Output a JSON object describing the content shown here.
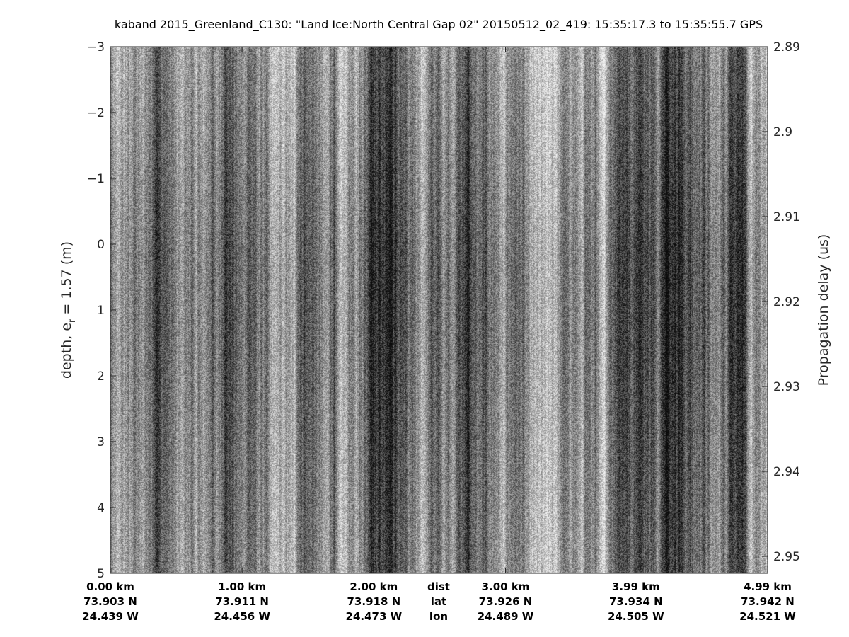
{
  "chart_data": {
    "type": "heatmap",
    "colormap": "gray",
    "title": "kaband 2015_Greenland_C130: \"Land Ice:North Central Gap 02\"  20150512_02_419: 15:35:17.3 to 15:35:55.7 GPS",
    "ylabel_left": "depth, e",
    "ylabel_left_subscript": "r",
    "ylabel_left_suffix": " = 1.57 (m)",
    "ylabel_right": "Propagation delay (us)",
    "ylim_left": [
      -3,
      5
    ],
    "yticks_left": [
      "-3",
      "-2",
      "-1",
      "0",
      "1",
      "2",
      "3",
      "4",
      "5"
    ],
    "ylim_right": [
      2.89,
      2.952
    ],
    "yticks_right": [
      "2.89",
      "2.9",
      "2.91",
      "2.92",
      "2.93",
      "2.94",
      "2.95"
    ],
    "y_reversed": true,
    "x_axis": {
      "row_labels": [
        "dist",
        "lat",
        "lon"
      ],
      "ticks": [
        {
          "dist": "0.00 km",
          "lat": "73.903 N",
          "lon": "24.439 W"
        },
        {
          "dist": "1.00 km",
          "lat": "73.911 N",
          "lon": "24.456 W"
        },
        {
          "dist": "2.00 km",
          "lat": "73.918 N",
          "lon": "24.473 W"
        },
        {
          "dist": "3.00 km",
          "lat": "73.926 N",
          "lon": "24.489 W"
        },
        {
          "dist": "3.99 km",
          "lat": "73.934 N",
          "lon": "24.505 W"
        },
        {
          "dist": "4.99 km",
          "lat": "73.942 N",
          "lon": "24.521 W"
        }
      ],
      "tick_values_km": [
        0,
        1,
        2,
        3,
        3.99,
        4.99
      ]
    },
    "grid": false
  }
}
